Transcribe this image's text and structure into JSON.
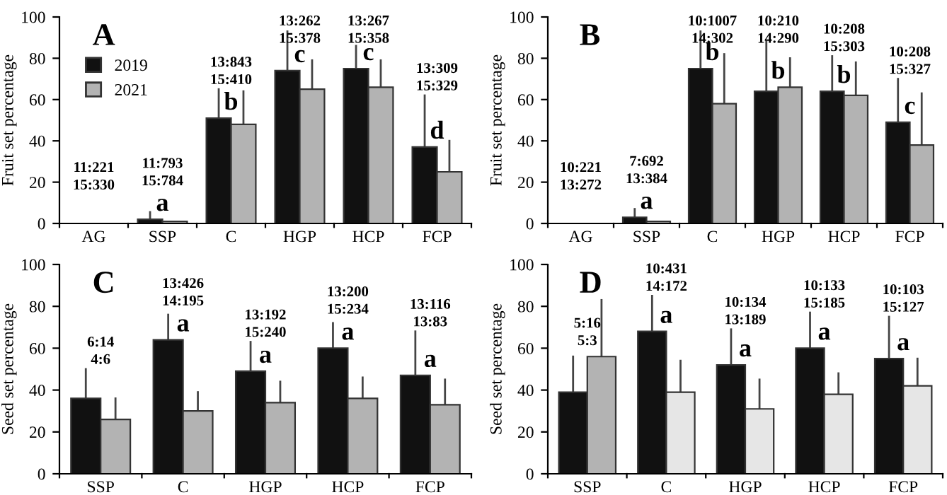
{
  "chart_data": [
    {
      "type": "bar",
      "title": "A",
      "ylabel": "Fruit set percentage",
      "categories": [
        "AG",
        "SSP",
        "C",
        "HGP",
        "HCP",
        "FCP"
      ],
      "ylim": [
        0,
        100
      ],
      "yticks": [
        0,
        20,
        40,
        60,
        80,
        100
      ],
      "grid": false,
      "legend": "top left",
      "series": [
        {
          "name": "2019",
          "color": "#111111",
          "values": [
            0,
            2,
            51,
            74,
            75,
            37
          ],
          "errors": [
            null,
            [
              2,
              5.5
            ],
            [
              51,
              65
            ],
            [
              74,
              93
            ],
            [
              75,
              86
            ],
            [
              37,
              62
            ]
          ]
        },
        {
          "name": "2021",
          "color": "#b3b3b3",
          "values": [
            0,
            1,
            48,
            65,
            66,
            25
          ],
          "errors": [
            null,
            null,
            [
              48,
              64
            ],
            [
              65,
              79
            ],
            [
              66,
              79
            ],
            [
              25,
              40
            ]
          ]
        }
      ],
      "annotations": [
        "11:221\n15:330",
        "11:793\n15:784",
        "13:843\n15:410",
        "13:262\n15:378",
        "13:267\n15:358",
        "13:309\n15:329",
        "a",
        "b",
        "c",
        "c",
        "d"
      ]
    },
    {
      "type": "bar",
      "title": "B",
      "ylabel": "Fruit set percentage",
      "categories": [
        "AG",
        "SSP",
        "C",
        "HGP",
        "HCP",
        "FCP"
      ],
      "ylim": [
        0,
        100
      ],
      "yticks": [
        0,
        20,
        40,
        60,
        80,
        100
      ],
      "grid": false,
      "series": [
        {
          "color": "#111111",
          "values": [
            0,
            3,
            75,
            64,
            64,
            49
          ],
          "errors": [
            null,
            [
              3,
              7
            ],
            [
              75,
              93
            ],
            [
              64,
              88
            ],
            [
              64,
              81
            ],
            [
              49,
              70
            ]
          ]
        },
        {
          "color": "#b3b3b3",
          "values": [
            0,
            1,
            58,
            66,
            62,
            38
          ],
          "errors": [
            null,
            null,
            [
              58,
              82
            ],
            [
              66,
              80
            ],
            [
              62,
              78
            ],
            [
              38,
              63
            ]
          ]
        }
      ],
      "annotations": [
        "10:221\n13:272",
        "7:692\n13:384",
        "10:1007\n14:302",
        "10:210\n14:290",
        "10:208\n15:303",
        "10:208\n15:327",
        "a",
        "b",
        "b",
        "b",
        "c"
      ]
    },
    {
      "type": "bar",
      "title": "C",
      "ylabel": "Seed set percentage",
      "categories": [
        "SSP",
        "C",
        "HGP",
        "HCP",
        "FCP"
      ],
      "ylim": [
        0,
        100
      ],
      "yticks": [
        0,
        20,
        40,
        60,
        80,
        100
      ],
      "grid": false,
      "series": [
        {
          "color": "#111111",
          "values": [
            36,
            64,
            49,
            60,
            47
          ],
          "errors": [
            [
              36,
              50
            ],
            [
              64,
              76
            ],
            [
              49,
              63
            ],
            [
              60,
              72
            ],
            [
              47,
              68
            ]
          ]
        },
        {
          "color": "#b3b3b3",
          "values": [
            26,
            30,
            34,
            36,
            33
          ],
          "errors": [
            [
              26,
              36
            ],
            [
              30,
              39
            ],
            [
              34,
              44
            ],
            [
              36,
              46
            ],
            [
              33,
              45
            ]
          ]
        }
      ],
      "annotations": [
        "6:14\n4:6",
        "13:426\n14:195",
        "13:192\n15:240",
        "13:200\n15:234",
        "13:116\n13:83",
        "a",
        "a",
        "a",
        "a"
      ]
    },
    {
      "type": "bar",
      "title": "D",
      "ylabel": "Seed set percentage",
      "categories": [
        "SSP",
        "C",
        "HGP",
        "HCP",
        "FCP"
      ],
      "ylim": [
        0,
        100
      ],
      "yticks": [
        0,
        20,
        40,
        60,
        80,
        100
      ],
      "grid": false,
      "series": [
        {
          "color": "#111111",
          "values": [
            39,
            68,
            52,
            60,
            55
          ],
          "errors": [
            [
              39,
              56
            ],
            [
              68,
              85
            ],
            [
              52,
              69
            ],
            [
              60,
              77
            ],
            [
              55,
              75
            ]
          ]
        },
        {
          "colors": [
            "#b3b3b3",
            "#e6e6e6",
            "#e6e6e6",
            "#e6e6e6",
            "#e6e6e6"
          ],
          "values": [
            56,
            39,
            31,
            38,
            42
          ],
          "errors": [
            [
              56,
              83
            ],
            [
              39,
              54
            ],
            [
              31,
              45
            ],
            [
              38,
              48
            ],
            [
              42,
              55
            ]
          ]
        }
      ],
      "annotations": [
        "5:16\n5:3",
        "10:431\n14:172",
        "10:134\n13:189",
        "10:133\n15:185",
        "10:103\n15:127",
        "a",
        "a",
        "a",
        "a"
      ]
    }
  ]
}
